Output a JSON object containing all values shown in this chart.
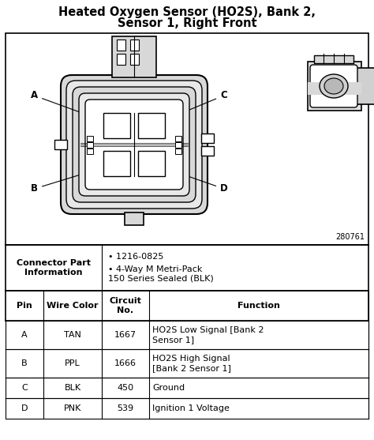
{
  "title_line1": "Heated Oxygen Sensor (HO2S), Bank 2,",
  "title_line2": "Sensor 1, Right Front",
  "diagram_id": "280761",
  "connector_part_label": "Connector Part\nInformation",
  "connector_part_bullets": [
    "1216-0825",
    "4-Way M Metri-Pack\n150 Series Sealed (BLK)"
  ],
  "table_headers": [
    "Pin",
    "Wire Color",
    "Circuit\nNo.",
    "Function"
  ],
  "table_rows": [
    [
      "A",
      "TAN",
      "1667",
      "HO2S Low Signal [Bank 2\nSensor 1]"
    ],
    [
      "B",
      "PPL",
      "1666",
      "HO2S High Signal\n[Bank 2 Sensor 1]"
    ],
    [
      "C",
      "BLK",
      "450",
      "Ground"
    ],
    [
      "D",
      "PNK",
      "539",
      "Ignition 1 Voltage"
    ]
  ],
  "bg_color": "#ffffff",
  "title_fontsize": 10.5,
  "table_fontsize": 8,
  "header_fontsize": 8
}
